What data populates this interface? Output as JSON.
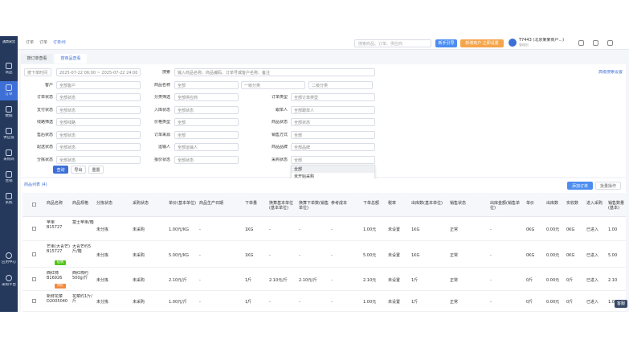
{
  "sidebar": {
    "logo": "通商易货",
    "items": [
      "商品",
      "订单",
      "数据",
      "供应链",
      "采购商",
      "营销",
      "系统"
    ],
    "active": 1,
    "bottom": [
      "应用中心",
      "采购平台"
    ]
  },
  "topbar": {
    "breadcrumb": [
      "订单",
      "订单",
      "订单列表"
    ],
    "search": "搜索商品、订单、供应商",
    "guide": "新手引导",
    "promo": "新增商户·立即设置",
    "user": "T7443 (北京某某商户...)",
    "user_sub": "管理员"
  },
  "tabs": [
    "按订单查看",
    "按商品查看"
  ],
  "active_tab": 1,
  "date_filter": {
    "label": "按下单时间",
    "value": "2025-07-22 06:00 ~ 2025-07-22 24:00"
  },
  "search": {
    "label": "搜索",
    "placeholder": "输入商品名称、商品编码、订单号或客户名称、备注"
  },
  "category_inputs": [
    "一级分类",
    "二级分类"
  ],
  "advanced": "高级搜索设置",
  "filters": {
    "col1": [
      {
        "label": "客户",
        "value": "全部客户"
      },
      {
        "label": "订单状态",
        "value": "全部状态"
      },
      {
        "label": "支付状态",
        "value": "全部状态"
      },
      {
        "label": "线路筛选",
        "value": "全部线路"
      },
      {
        "label": "售后状态",
        "value": "全部状态"
      },
      {
        "label": "配送状态",
        "value": "全部状态"
      },
      {
        "label": "分拣状态",
        "value": "全部状态"
      }
    ],
    "col2": [
      {
        "label": "商品名称",
        "value": "全部"
      },
      {
        "label": "分类筛选",
        "value": "全部供应商"
      },
      {
        "label": "入库状态",
        "value": "全部状态"
      },
      {
        "label": "价格类型",
        "value": "全部"
      },
      {
        "label": "订单来源",
        "value": "全部"
      },
      {
        "label": "运输人",
        "value": "全部运输人"
      },
      {
        "label": "报价状态",
        "value": "全部状态"
      }
    ],
    "col3": [
      {
        "label": "订单类型",
        "value": "全部订单类型"
      },
      {
        "label": "跟单人",
        "value": "全部跟单人"
      },
      {
        "label": "商品状态",
        "value": "全部状态"
      },
      {
        "label": "销售方式",
        "value": "全部"
      },
      {
        "label": "商品品牌",
        "value": "全部品牌"
      },
      {
        "label": "采购状态",
        "value": "全部"
      }
    ]
  },
  "dropdown": [
    "全部",
    "未开始采购",
    "部分采购",
    "已采购",
    "采购完成/待分拣"
  ],
  "buttons": [
    "查询",
    "导出",
    "重置"
  ],
  "table": {
    "title": "商品列表 (4)",
    "actions": [
      "添加订单",
      "批量操作"
    ],
    "headers": [
      "商品名称",
      "商品规格",
      "分拣状态",
      "采购状态",
      "单价(基本单位)",
      "商品生产日期",
      "下单量",
      "换算基本单位(基本单位)",
      "换算下单数(销售单位)",
      "参考成本",
      "下单总额",
      "税率",
      "出库数(基本单位)",
      "销售状态",
      "出库金额(销售单位)",
      "单价",
      "出库数",
      "实收数",
      "进入采购",
      "销售数量(基本)"
    ],
    "rows": [
      {
        "cells": [
          "苹果 B15727",
          "富士苹果/箱",
          "未分拣",
          "未采购",
          "1.00元/KG",
          "-",
          "1KG",
          "-",
          "-",
          "-",
          "1.00元",
          "未设置",
          "1KG",
          "正常",
          "-",
          "0KG",
          "0.00元",
          "0KG",
          "已进入",
          "1.00"
        ]
      },
      {
        "cells": [
          "芒果(大青芒) B15727",
          "大青芒约5斤/箱",
          "未分拣",
          "未采购",
          "5.00元/KG",
          "-",
          "1KG",
          "-",
          "-",
          "-",
          "5.00元",
          "未设置",
          "1KG",
          "正常",
          "-",
          "0KG",
          "0.00元",
          "0KG",
          "已进入",
          "5.00"
        ],
        "tag": "促销"
      },
      {
        "cells": [
          "西红柿 B16926",
          "西红柿约500g/斤",
          "未分拣",
          "未采购",
          "2.10元/斤",
          "-",
          "1斤",
          "2.10元/斤",
          "2.10元/斤",
          "-",
          "2.10元",
          "未设置",
          "1斤",
          "正常",
          "-",
          "0斤",
          "0.00元",
          "0斤",
          "已进入",
          "2.10"
        ],
        "tag": "特价"
      },
      {
        "cells": [
          "新鲜花菜 D2005040",
          "花菜约1斤/斤",
          "未分拣",
          "未采购",
          "1.00元/斤",
          "-",
          "1斤",
          "-",
          "-",
          "-",
          "1.00元",
          "未设置",
          "1斤",
          "正常",
          "-",
          "0斤",
          "0.00元",
          "0斤",
          "已进入",
          "1.00"
        ]
      }
    ]
  },
  "help": "客服"
}
